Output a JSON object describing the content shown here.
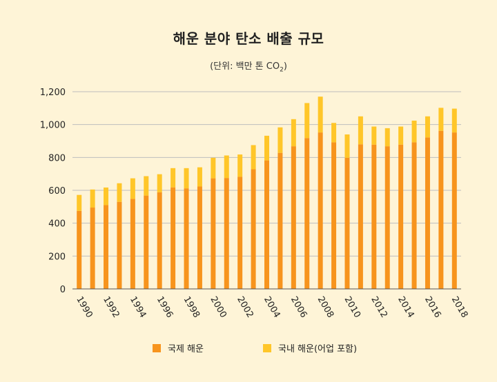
{
  "chart_data": {
    "type": "bar",
    "stacked": true,
    "title": "해운 분야 탄소 배출 규모",
    "subtitle_prefix": "(단위: 백만 톤 CO",
    "subtitle_sub": "2",
    "subtitle_suffix": ")",
    "ylim": [
      0,
      1200
    ],
    "yticks": [
      0,
      200,
      400,
      600,
      800,
      1000,
      1200
    ],
    "ytick_labels": [
      "0",
      "200",
      "400",
      "600",
      "800",
      "1,000",
      "1,200"
    ],
    "categories": [
      1990,
      1991,
      1992,
      1993,
      1994,
      1995,
      1996,
      1997,
      1998,
      1999,
      2000,
      2001,
      2002,
      2003,
      2004,
      2005,
      2006,
      2007,
      2008,
      2009,
      2010,
      2011,
      2012,
      2013,
      2014,
      2015,
      2016,
      2017,
      2018
    ],
    "xtick_labels": [
      "1990",
      "1992",
      "1994",
      "1996",
      "1998",
      "2000",
      "2002",
      "2004",
      "2006",
      "2008",
      "2010",
      "2012",
      "2014",
      "2016",
      "2018"
    ],
    "series": [
      {
        "name": "국제 해운",
        "color": "#F7941D",
        "values": [
          475,
          495,
          510,
          530,
          548,
          568,
          588,
          618,
          612,
          623,
          673,
          675,
          682,
          728,
          782,
          828,
          868,
          918,
          952,
          892,
          798,
          880,
          878,
          868,
          878,
          892,
          922,
          962,
          952
        ]
      },
      {
        "name": "국내 해운(어업 포함)",
        "color": "#FFC629",
        "values": [
          97,
          110,
          107,
          113,
          125,
          118,
          110,
          117,
          123,
          117,
          125,
          137,
          136,
          147,
          150,
          155,
          165,
          213,
          218,
          118,
          142,
          170,
          110,
          110,
          110,
          132,
          128,
          140,
          145
        ]
      }
    ]
  }
}
